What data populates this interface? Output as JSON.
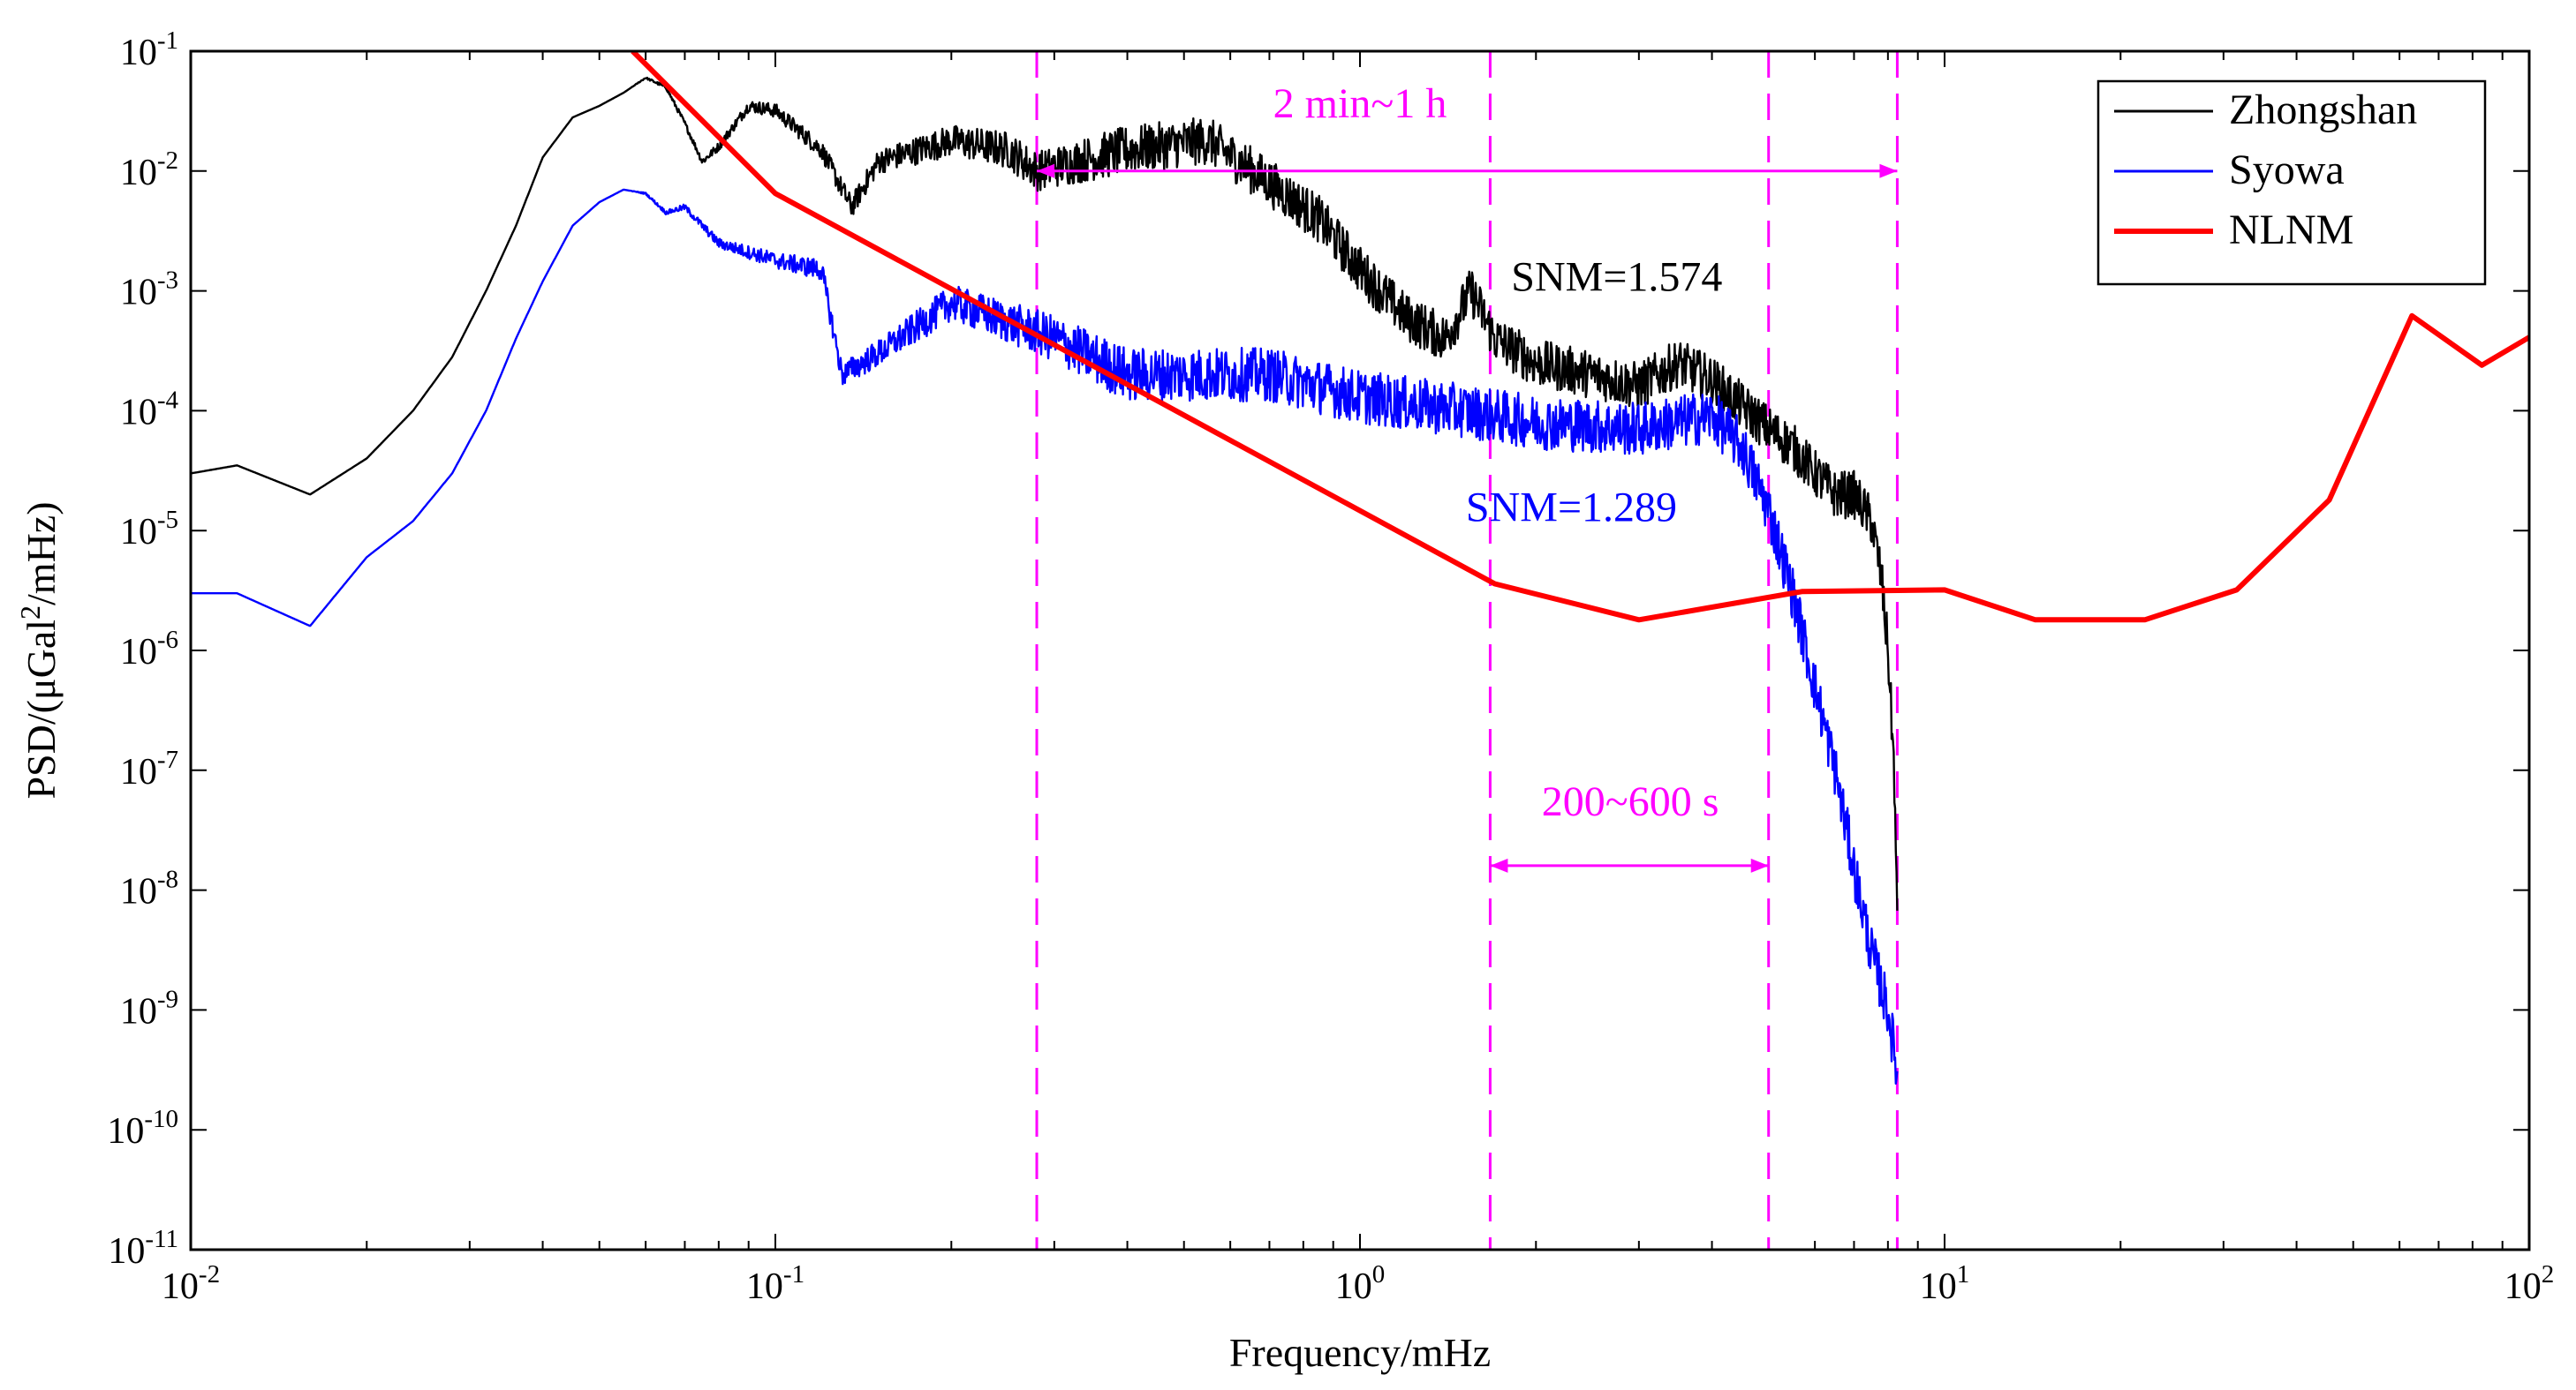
{
  "chart_data": {
    "type": "line",
    "x_scale": "log",
    "y_scale": "log",
    "xlabel": "Frequency/mHz",
    "ylabel": {
      "before": "PSD/(μGal",
      "sup": "2",
      "after": "/mHz)"
    },
    "xlim": [
      0.01,
      100
    ],
    "ylim": [
      1e-11,
      0.1
    ],
    "x_ticks": [
      {
        "base": "10",
        "exp": "-2"
      },
      {
        "base": "10",
        "exp": "-1"
      },
      {
        "base": "10",
        "exp": "0"
      },
      {
        "base": "10",
        "exp": "1"
      },
      {
        "base": "10",
        "exp": "2"
      }
    ],
    "y_ticks": [
      {
        "base": "10",
        "exp": "-1"
      },
      {
        "base": "10",
        "exp": "-2"
      },
      {
        "base": "10",
        "exp": "-3"
      },
      {
        "base": "10",
        "exp": "-4"
      },
      {
        "base": "10",
        "exp": "-5"
      },
      {
        "base": "10",
        "exp": "-6"
      },
      {
        "base": "10",
        "exp": "-7"
      },
      {
        "base": "10",
        "exp": "-8"
      },
      {
        "base": "10",
        "exp": "-9"
      },
      {
        "base": "10",
        "exp": "-10"
      },
      {
        "base": "10",
        "exp": "-11"
      }
    ],
    "legend": {
      "position": "top-right",
      "entries": [
        {
          "name": "Zhongshan",
          "color": "#000000"
        },
        {
          "name": "Syowa",
          "color": "#0000ff"
        },
        {
          "name": "NLNM",
          "color": "#ff0000"
        }
      ]
    },
    "series": [
      {
        "name": "Zhongshan",
        "color": "#000000",
        "noise": 0.4,
        "points": [
          [
            0.01,
            3e-05
          ],
          [
            0.012,
            3.5e-05
          ],
          [
            0.016,
            2e-05
          ],
          [
            0.02,
            4e-05
          ],
          [
            0.024,
            0.0001
          ],
          [
            0.028,
            0.00028
          ],
          [
            0.032,
            0.001
          ],
          [
            0.036,
            0.0035
          ],
          [
            0.04,
            0.013
          ],
          [
            0.045,
            0.028
          ],
          [
            0.05,
            0.035
          ],
          [
            0.055,
            0.045
          ],
          [
            0.06,
            0.06
          ],
          [
            0.065,
            0.05
          ],
          [
            0.07,
            0.025
          ],
          [
            0.075,
            0.012
          ],
          [
            0.08,
            0.016
          ],
          [
            0.09,
            0.035
          ],
          [
            0.1,
            0.032
          ],
          [
            0.12,
            0.015
          ],
          [
            0.135,
            0.005
          ],
          [
            0.15,
            0.012
          ],
          [
            0.2,
            0.018
          ],
          [
            0.25,
            0.015
          ],
          [
            0.28,
            0.01
          ],
          [
            0.4,
            0.015
          ],
          [
            0.55,
            0.018
          ],
          [
            0.7,
            0.008
          ],
          [
            0.85,
            0.004
          ],
          [
            1.0,
            0.0015
          ],
          [
            1.2,
            0.0006
          ],
          [
            1.4,
            0.0004
          ],
          [
            1.55,
            0.001
          ],
          [
            1.7,
            0.0004
          ],
          [
            2.0,
            0.00025
          ],
          [
            2.5,
            0.0002
          ],
          [
            3.0,
            0.00016
          ],
          [
            3.5,
            0.00025
          ],
          [
            4.0,
            0.00018
          ],
          [
            4.5,
            0.00011
          ],
          [
            5.0,
            7e-05
          ],
          [
            5.5,
            5e-05
          ],
          [
            6.0,
            3e-05
          ],
          [
            6.5,
            2e-05
          ],
          [
            7.0,
            2e-05
          ],
          [
            7.5,
            1.2e-05
          ],
          [
            7.8,
            4e-06
          ],
          [
            8.0,
            1e-06
          ],
          [
            8.2,
            1e-07
          ],
          [
            8.3,
            5e-09
          ]
        ]
      },
      {
        "name": "Syowa",
        "color": "#0000ff",
        "noise": 0.45,
        "points": [
          [
            0.01,
            3e-06
          ],
          [
            0.012,
            3e-06
          ],
          [
            0.016,
            1.6e-06
          ],
          [
            0.02,
            6e-06
          ],
          [
            0.024,
            1.2e-05
          ],
          [
            0.028,
            3e-05
          ],
          [
            0.032,
            0.0001
          ],
          [
            0.036,
            0.0004
          ],
          [
            0.04,
            0.0012
          ],
          [
            0.045,
            0.0035
          ],
          [
            0.05,
            0.0055
          ],
          [
            0.055,
            0.007
          ],
          [
            0.06,
            0.0065
          ],
          [
            0.065,
            0.0045
          ],
          [
            0.07,
            0.005
          ],
          [
            0.08,
            0.0025
          ],
          [
            0.1,
            0.0018
          ],
          [
            0.12,
            0.0015
          ],
          [
            0.13,
            0.0002
          ],
          [
            0.15,
            0.0003
          ],
          [
            0.2,
            0.0008
          ],
          [
            0.3,
            0.0004
          ],
          [
            0.4,
            0.0002
          ],
          [
            0.5,
            0.0002
          ],
          [
            0.7,
            0.0002
          ],
          [
            1.0,
            0.00013
          ],
          [
            1.5,
            0.0001
          ],
          [
            2.0,
            8e-05
          ],
          [
            3.0,
            7e-05
          ],
          [
            4.0,
            9e-05
          ],
          [
            4.5,
            5e-05
          ],
          [
            5.0,
            1.5e-05
          ],
          [
            5.5,
            3e-06
          ],
          [
            6.0,
            5e-07
          ],
          [
            6.5,
            1e-07
          ],
          [
            7.0,
            1.5e-08
          ],
          [
            7.5,
            3e-09
          ],
          [
            8.0,
            1e-09
          ],
          [
            8.3,
            3e-10
          ]
        ]
      },
      {
        "name": "NLNM",
        "color": "#ff0000",
        "noise": 0,
        "points": [
          [
            0.057,
            0.1
          ],
          [
            0.1,
            0.0065
          ],
          [
            1.7,
            3.6e-06
          ],
          [
            3.0,
            1.8e-06
          ],
          [
            5.7,
            3.1e-06
          ],
          [
            10.0,
            3.2e-06
          ],
          [
            14.3,
            1.8e-06
          ],
          [
            22.0,
            1.8e-06
          ],
          [
            31.6,
            3.2e-06
          ],
          [
            45.5,
            1.8e-05
          ],
          [
            63.0,
            0.00062
          ],
          [
            83.0,
            0.00024
          ],
          [
            100.0,
            0.00041
          ]
        ]
      }
    ],
    "vlines": [
      0.28,
      1.67,
      5.0,
      8.3
    ],
    "annotations": [
      {
        "text": "2 min~1 h",
        "color": "#ff00ff",
        "from": 0.28,
        "to": 8.3,
        "arrow_y": 0.01,
        "text_x": 1.0,
        "text_y": 0.028
      },
      {
        "text": "200~600 s",
        "color": "#ff00ff",
        "from": 1.67,
        "to": 5.0,
        "arrow_y": 1.6e-08,
        "text_x": 2.9,
        "text_y": 4.2e-08
      },
      {
        "text": "SNM=1.574",
        "color": "#000000",
        "text_x": 2.75,
        "text_y": 0.001
      },
      {
        "text": "SNM=1.289",
        "color": "#0000ff",
        "text_x": 2.3,
        "text_y": 1.2e-05
      }
    ]
  }
}
